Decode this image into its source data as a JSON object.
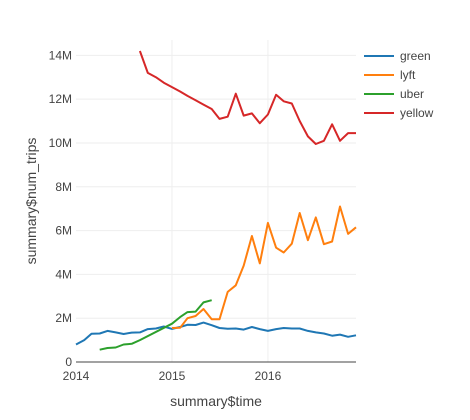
{
  "chart_data": {
    "type": "line",
    "title": "",
    "xlabel": "summary$time",
    "ylabel": "summary$num_trips",
    "x_tick_labels": [
      "2014",
      "2015",
      "2016"
    ],
    "x_ticks": [
      "2014-01-01",
      "2015-01-01",
      "2016-01-01"
    ],
    "xlim": [
      "2014-01-01",
      "2016-12-01"
    ],
    "y_tick_labels": [
      "0",
      "2M",
      "4M",
      "6M",
      "8M",
      "10M",
      "12M",
      "14M"
    ],
    "y_ticks": [
      0,
      2000000,
      4000000,
      6000000,
      8000000,
      10000000,
      12000000,
      14000000
    ],
    "ylim": [
      0,
      14700000
    ],
    "grid": true,
    "legend_position": "top-right",
    "series": [
      {
        "name": "green",
        "color": "#1f77b4",
        "x": [
          "2014-01-01",
          "2014-02-01",
          "2014-03-01",
          "2014-04-01",
          "2014-05-01",
          "2014-06-01",
          "2014-07-01",
          "2014-08-01",
          "2014-09-01",
          "2014-10-01",
          "2014-11-01",
          "2014-12-01",
          "2015-01-01",
          "2015-02-01",
          "2015-03-01",
          "2015-04-01",
          "2015-05-01",
          "2015-06-01",
          "2015-07-01",
          "2015-08-01",
          "2015-09-01",
          "2015-10-01",
          "2015-11-01",
          "2015-12-01",
          "2016-01-01",
          "2016-02-01",
          "2016-03-01",
          "2016-04-01",
          "2016-05-01",
          "2016-06-01",
          "2016-07-01",
          "2016-08-01",
          "2016-09-01",
          "2016-10-01",
          "2016-11-01",
          "2016-12-01"
        ],
        "y": [
          800000,
          1000000,
          1290000,
          1300000,
          1420000,
          1350000,
          1280000,
          1340000,
          1350000,
          1500000,
          1530000,
          1620000,
          1510000,
          1600000,
          1700000,
          1690000,
          1800000,
          1680000,
          1550000,
          1520000,
          1530000,
          1480000,
          1600000,
          1500000,
          1420000,
          1500000,
          1550000,
          1530000,
          1530000,
          1420000,
          1350000,
          1300000,
          1200000,
          1250000,
          1150000,
          1220000
        ]
      },
      {
        "name": "lyft",
        "color": "#ff7f0e",
        "x": [
          "2015-01-01",
          "2015-02-01",
          "2015-03-01",
          "2015-04-01",
          "2015-05-01",
          "2015-06-01",
          "2015-07-01",
          "2015-08-01",
          "2015-09-01",
          "2015-10-01",
          "2015-11-01",
          "2015-12-01",
          "2016-01-01",
          "2016-02-01",
          "2016-03-01",
          "2016-04-01",
          "2016-05-01",
          "2016-06-01",
          "2016-07-01",
          "2016-08-01",
          "2016-09-01",
          "2016-10-01",
          "2016-11-01",
          "2016-12-01"
        ],
        "y": [
          1550000,
          1560000,
          2000000,
          2100000,
          2420000,
          1950000,
          1950000,
          3200000,
          3500000,
          4400000,
          5750000,
          4500000,
          6350000,
          5220000,
          5000000,
          5400000,
          6800000,
          5560000,
          6600000,
          5380000,
          5500000,
          7100000,
          5850000,
          6150000
        ]
      },
      {
        "name": "uber",
        "color": "#2ca02c",
        "x": [
          "2014-04-01",
          "2014-05-01",
          "2014-06-01",
          "2014-07-01",
          "2014-08-01",
          "2014-09-01",
          "2015-01-01",
          "2015-02-01",
          "2015-03-01",
          "2015-04-01",
          "2015-05-01",
          "2015-06-01"
        ],
        "y": [
          560000,
          640000,
          660000,
          800000,
          830000,
          1000000,
          1750000,
          2050000,
          2280000,
          2300000,
          2720000,
          2820000
        ]
      },
      {
        "name": "yellow",
        "color": "#d62728",
        "x": [
          "2014-09-01",
          "2014-10-01",
          "2014-11-01",
          "2014-12-01",
          "2015-01-01",
          "2015-02-01",
          "2015-03-01",
          "2015-04-01",
          "2015-05-01",
          "2015-06-01",
          "2015-07-01",
          "2015-08-01",
          "2015-09-01",
          "2015-10-01",
          "2015-11-01",
          "2015-12-01",
          "2016-01-01",
          "2016-02-01",
          "2016-03-01",
          "2016-04-01",
          "2016-05-01",
          "2016-06-01",
          "2016-07-01",
          "2016-08-01",
          "2016-09-01",
          "2016-10-01",
          "2016-11-01",
          "2016-12-01"
        ],
        "y": [
          14200000,
          13200000,
          13000000,
          12750000,
          12550000,
          12350000,
          12150000,
          11950000,
          11750000,
          11550000,
          11100000,
          11200000,
          12250000,
          11250000,
          11350000,
          10900000,
          11300000,
          12200000,
          11900000,
          11800000,
          11000000,
          10300000,
          9950000,
          10100000,
          10850000,
          10100000,
          10450000,
          10450000
        ]
      }
    ]
  }
}
